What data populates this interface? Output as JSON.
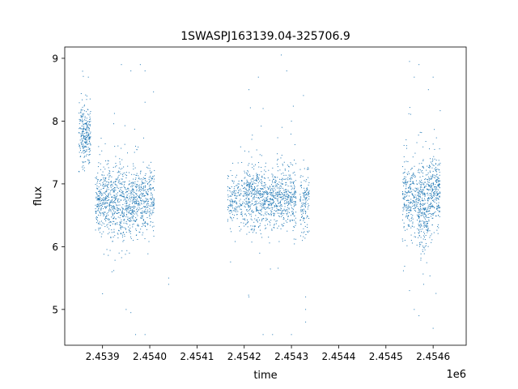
{
  "chart_data": {
    "type": "scatter",
    "title": "1SWASPJ163139.04-325706.9",
    "xlabel": "time",
    "ylabel": "flux",
    "x_offset_label": "1e6",
    "xlim": [
      2.45382,
      2.45467
    ],
    "ylim": [
      4.43,
      9.18
    ],
    "x_ticks": [
      2.4539,
      2.454,
      2.4541,
      2.4542,
      2.4543,
      2.4544,
      2.4545,
      2.4546
    ],
    "x_tick_labels": [
      "2.4539",
      "2.4540",
      "2.4541",
      "2.4542",
      "2.4543",
      "2.4544",
      "2.4545",
      "2.4546"
    ],
    "y_ticks": [
      5,
      6,
      7,
      8,
      9
    ],
    "y_tick_labels": [
      "5",
      "6",
      "7",
      "8",
      "9"
    ],
    "grid": false,
    "legend": "none",
    "marker_color": "#1f77b4",
    "series": [
      {
        "clusters": [
          {
            "x_range": [
              2.45385,
              2.453875
            ],
            "y_center": 7.8,
            "y_spread": 0.22,
            "n": 260
          },
          {
            "x_range": [
              2.453885,
              2.45392
            ],
            "y_center": 6.75,
            "y_spread": 0.28,
            "n": 330
          },
          {
            "x_range": [
              2.45392,
              2.453955
            ],
            "y_center": 6.7,
            "y_spread": 0.3,
            "n": 330
          },
          {
            "x_range": [
              2.453955,
              2.453985
            ],
            "y_center": 6.72,
            "y_spread": 0.28,
            "n": 280
          },
          {
            "x_range": [
              2.453985,
              2.45401
            ],
            "y_center": 6.75,
            "y_spread": 0.25,
            "n": 200
          },
          {
            "x_range": [
              2.454165,
              2.4542
            ],
            "y_center": 6.75,
            "y_spread": 0.22,
            "n": 180
          },
          {
            "x_range": [
              2.4542,
              2.45424
            ],
            "y_center": 6.8,
            "y_spread": 0.26,
            "n": 360
          },
          {
            "x_range": [
              2.45424,
              2.45427
            ],
            "y_center": 6.75,
            "y_spread": 0.22,
            "n": 240
          },
          {
            "x_range": [
              2.45427,
              2.45431
            ],
            "y_center": 6.78,
            "y_spread": 0.26,
            "n": 330
          },
          {
            "x_range": [
              2.454318,
              2.454338
            ],
            "y_center": 6.7,
            "y_spread": 0.26,
            "n": 140
          },
          {
            "x_range": [
              2.454535,
              2.45457
            ],
            "y_center": 6.75,
            "y_spread": 0.3,
            "n": 300
          },
          {
            "x_range": [
              2.45457,
              2.45459
            ],
            "y_center": 6.6,
            "y_spread": 0.34,
            "n": 260
          },
          {
            "x_range": [
              2.45459,
              2.454615
            ],
            "y_center": 6.9,
            "y_spread": 0.3,
            "n": 280
          }
        ],
        "outliers": [
          [
            2.45387,
            8.7
          ],
          [
            2.4539,
            5.25
          ],
          [
            2.45392,
            5.6
          ],
          [
            2.45394,
            8.9
          ],
          [
            2.45395,
            5.0
          ],
          [
            2.45396,
            4.95
          ],
          [
            2.45396,
            8.8
          ],
          [
            2.45397,
            4.6
          ],
          [
            2.45398,
            8.9
          ],
          [
            2.45397,
            7.6
          ],
          [
            2.45399,
            8.8
          ],
          [
            2.45399,
            4.6
          ],
          [
            2.45399,
            8.3
          ],
          [
            2.45404,
            5.5
          ],
          [
            2.45404,
            5.4
          ],
          [
            2.45421,
            5.2
          ],
          [
            2.45421,
            8.5
          ],
          [
            2.45423,
            8.7
          ],
          [
            2.45424,
            8.2
          ],
          [
            2.45426,
            4.6
          ],
          [
            2.45424,
            4.6
          ],
          [
            2.45428,
            7.9
          ],
          [
            2.45429,
            8.8
          ],
          [
            2.4543,
            4.6
          ],
          [
            2.4543,
            8.0
          ],
          [
            2.45433,
            5.2
          ],
          [
            2.45433,
            5.0
          ],
          [
            2.45433,
            4.8
          ],
          [
            2.45455,
            8.95
          ],
          [
            2.45456,
            8.7
          ],
          [
            2.45457,
            8.9
          ],
          [
            2.45457,
            4.9
          ],
          [
            2.45459,
            8.5
          ],
          [
            2.4546,
            4.7
          ],
          [
            2.4546,
            8.7
          ],
          [
            2.45456,
            5.0
          ],
          [
            2.45458,
            5.4
          ],
          [
            2.45455,
            5.3
          ]
        ]
      }
    ]
  }
}
